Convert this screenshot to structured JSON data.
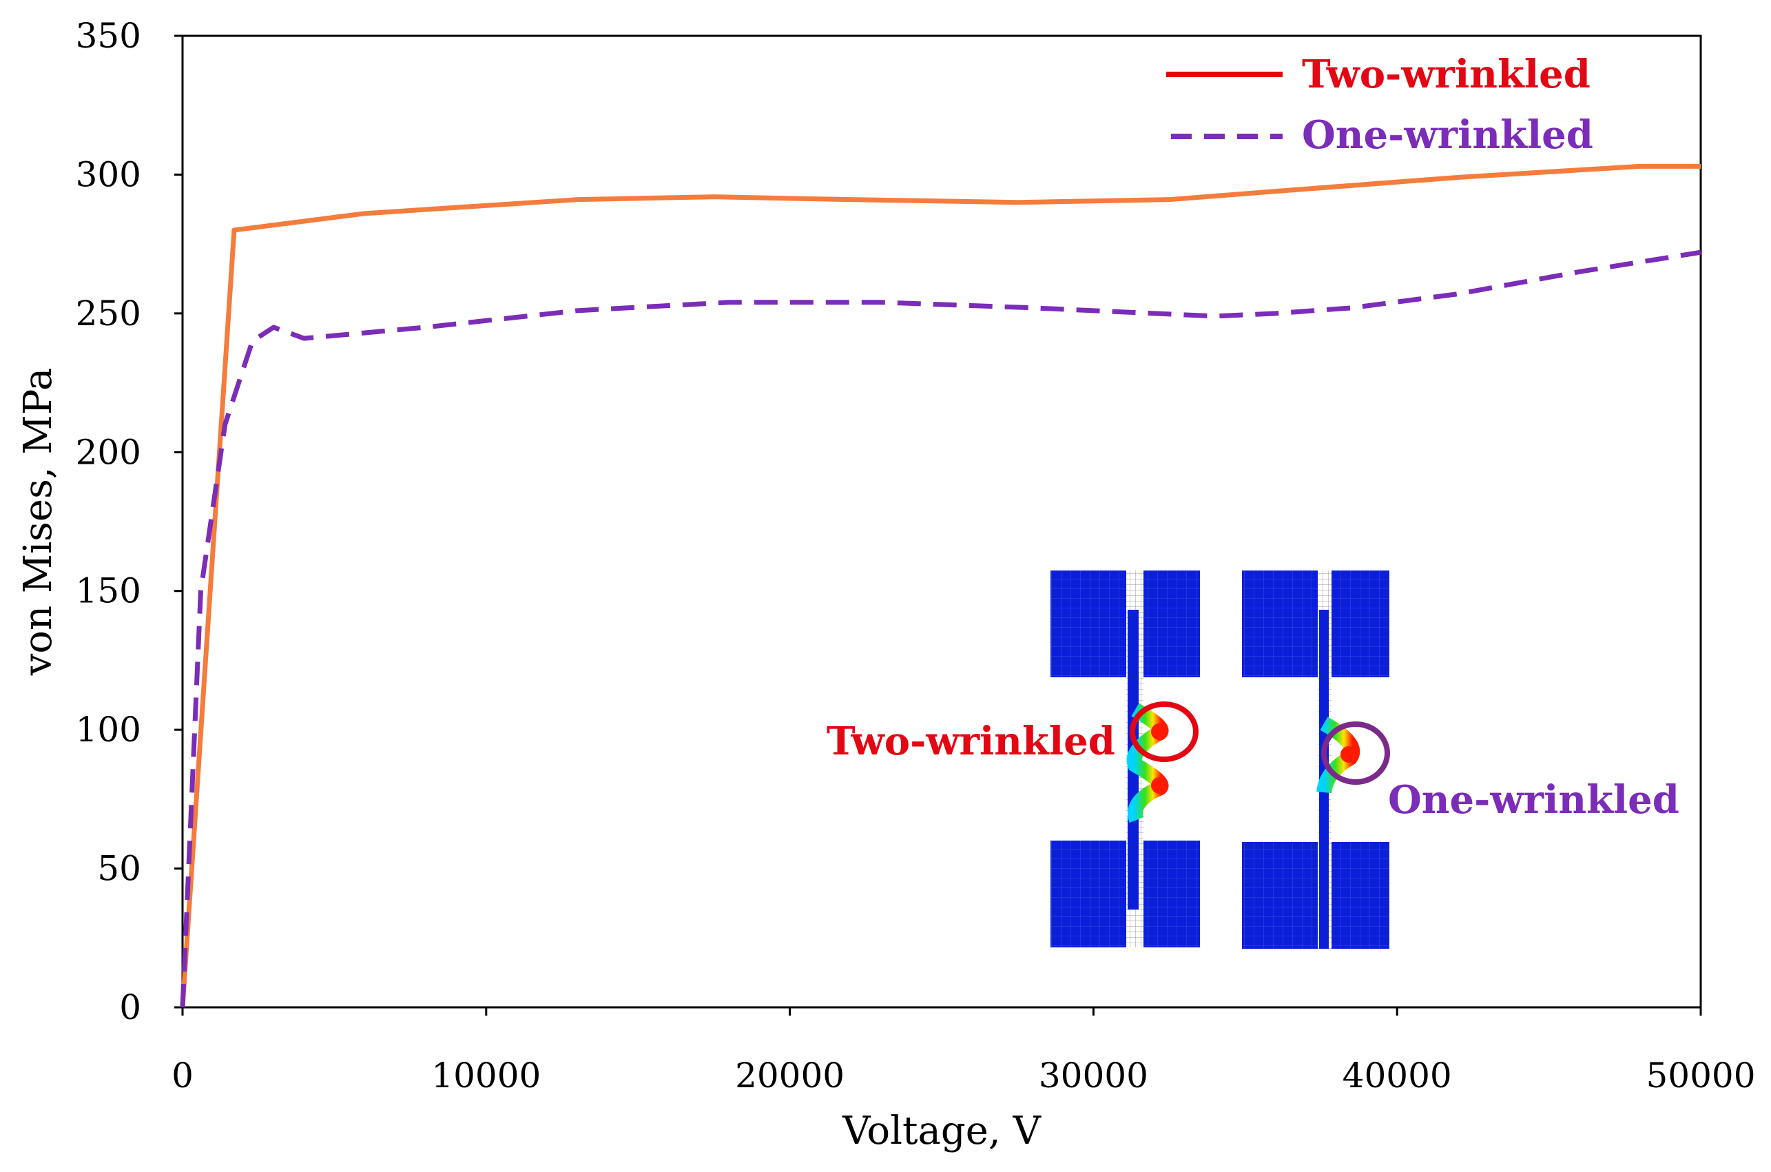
{
  "chart_data": {
    "type": "line",
    "xlabel": "Voltage, V",
    "ylabel": "von Mises, MPa",
    "xlim": [
      0,
      50000
    ],
    "ylim": [
      0,
      350
    ],
    "xticks": [
      0,
      10000,
      20000,
      30000,
      40000,
      50000
    ],
    "yticks": [
      0,
      50,
      100,
      150,
      200,
      250,
      300,
      350
    ],
    "xtick_labels": [
      "0",
      "10000",
      "20000",
      "30000",
      "40000",
      "50000"
    ],
    "ytick_labels": [
      "0",
      "50",
      "100",
      "150",
      "200",
      "250",
      "300",
      "350"
    ],
    "grid": false,
    "legend_position": "top-right",
    "series": [
      {
        "name": "Two-wrinkled",
        "color": "#f47c3c",
        "legend_color": "#e30613",
        "dash": "solid",
        "x": [
          0,
          1700,
          6000,
          13000,
          17500,
          22000,
          27500,
          32500,
          36000,
          42000,
          48000,
          50000
        ],
        "y": [
          0,
          280,
          286,
          291,
          292,
          291,
          290,
          291,
          294,
          299,
          303,
          303
        ]
      },
      {
        "name": "One-wrinkled",
        "color": "#7b2cb8",
        "legend_color": "#7b2cb8",
        "dash": "dashed",
        "x": [
          0,
          600,
          1400,
          2300,
          3000,
          4000,
          8000,
          13000,
          18000,
          23000,
          28000,
          32000,
          34000,
          36000,
          38500,
          42000,
          46000,
          50000
        ],
        "y": [
          0,
          150,
          210,
          240,
          245,
          241,
          245,
          251,
          254,
          254,
          252,
          250,
          249,
          250,
          252,
          257,
          265,
          272
        ]
      }
    ],
    "inset_labels": {
      "two": "Two-wrinkled",
      "one": "One-wrinkled"
    }
  }
}
